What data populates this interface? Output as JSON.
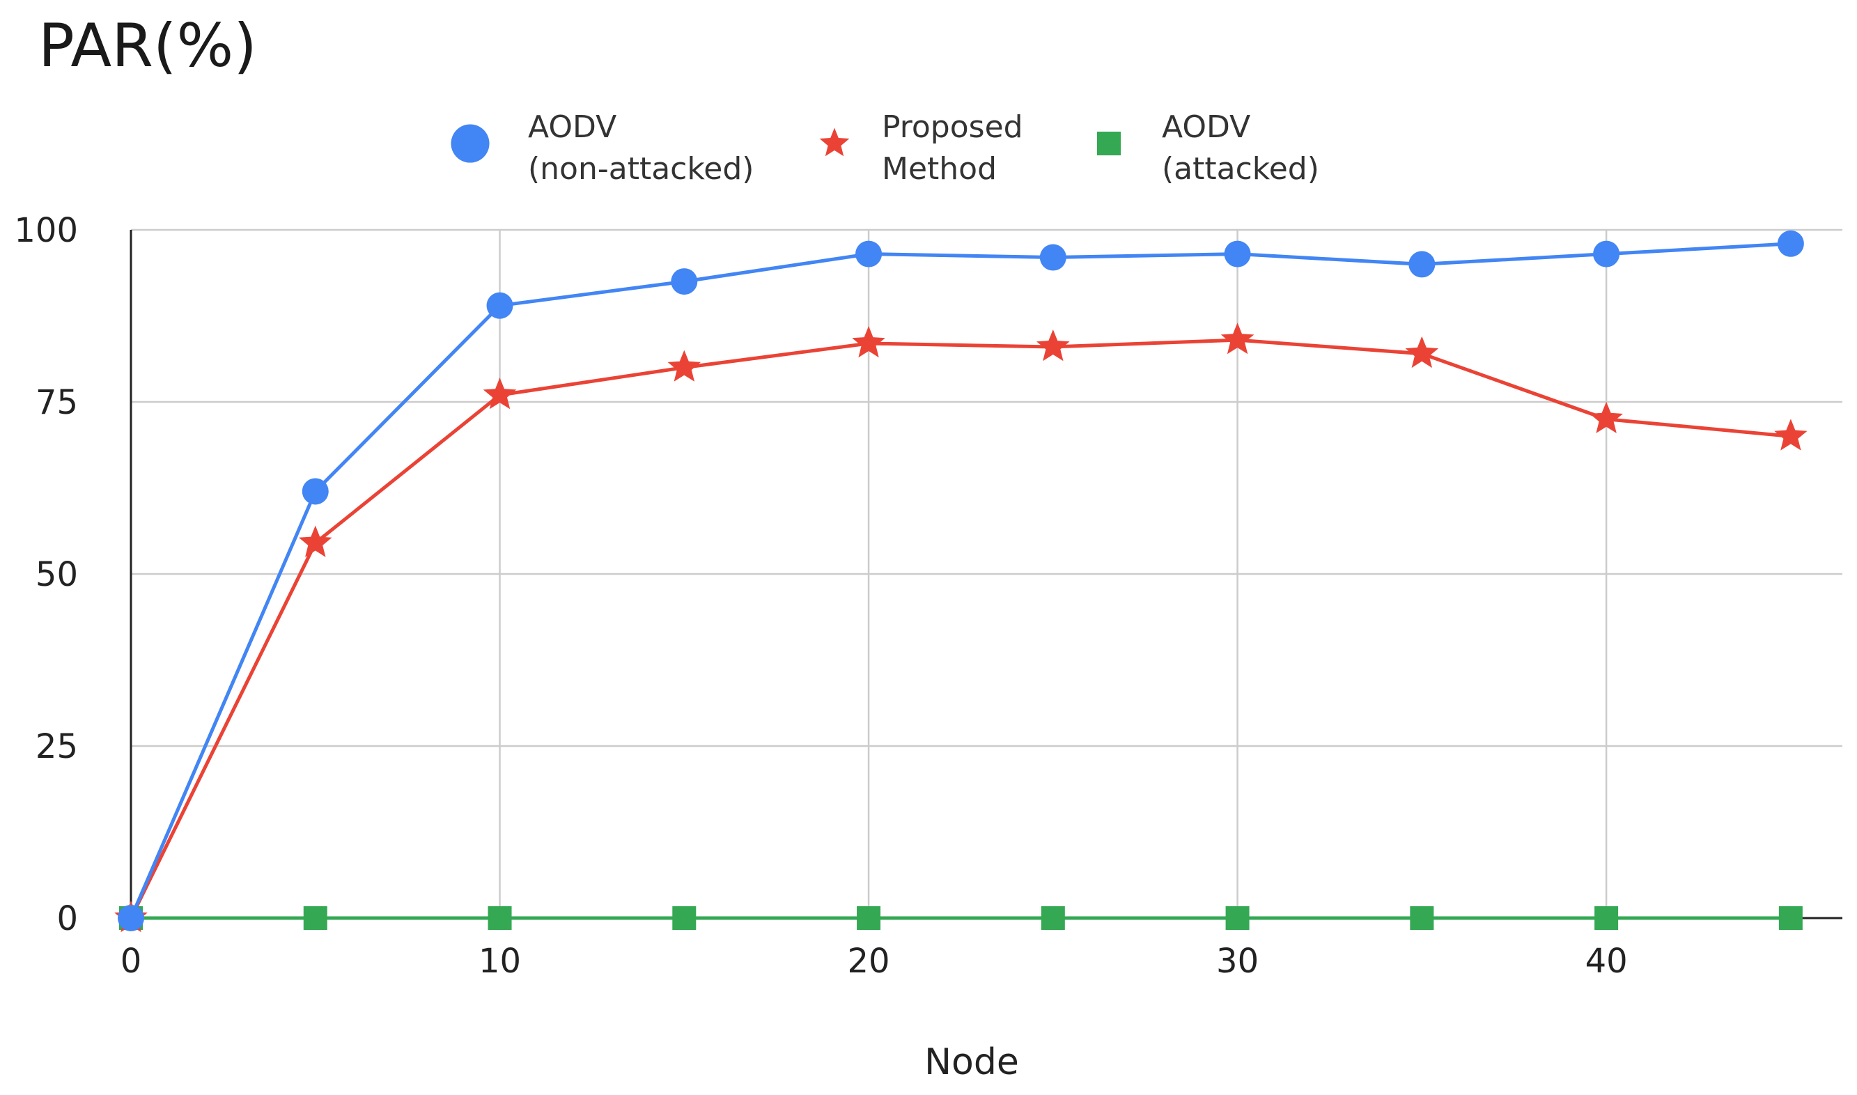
{
  "chart_data": {
    "type": "line",
    "title": "PAR(%)",
    "xlabel": "Node",
    "ylabel": "PAR(%)",
    "x": [
      0,
      5,
      10,
      15,
      20,
      25,
      30,
      35,
      40,
      45
    ],
    "xlim": [
      0,
      46.4
    ],
    "ylim": [
      0,
      100
    ],
    "x_ticks": [
      "0",
      "10",
      "20",
      "30",
      "40"
    ],
    "x_tick_values": [
      0,
      10,
      20,
      30,
      40
    ],
    "y_ticks": [
      "0",
      "25",
      "50",
      "75",
      "100"
    ],
    "y_tick_values": [
      0,
      25,
      50,
      75,
      100
    ],
    "grid": true,
    "legend_position": "top",
    "series": [
      {
        "name": "AODV (non-attacked)",
        "legend_lines": [
          "AODV",
          "(non-attacked)"
        ],
        "color": "#4285f4",
        "marker": "circle",
        "values": [
          0,
          62,
          89,
          92.5,
          96.5,
          96,
          96.5,
          95,
          96.5,
          98
        ]
      },
      {
        "name": "Proposed Method",
        "legend_lines": [
          "Proposed",
          "Method"
        ],
        "color": "#ea4335",
        "marker": "star",
        "values": [
          0,
          54.5,
          76,
          80,
          83.5,
          83,
          84,
          82,
          72.5,
          70
        ]
      },
      {
        "name": "AODV (attacked)",
        "legend_lines": [
          "AODV",
          "(attacked)"
        ],
        "color": "#34a853",
        "marker": "square",
        "values": [
          0,
          0,
          0,
          0,
          0,
          0,
          0,
          0,
          0,
          0
        ]
      }
    ]
  }
}
